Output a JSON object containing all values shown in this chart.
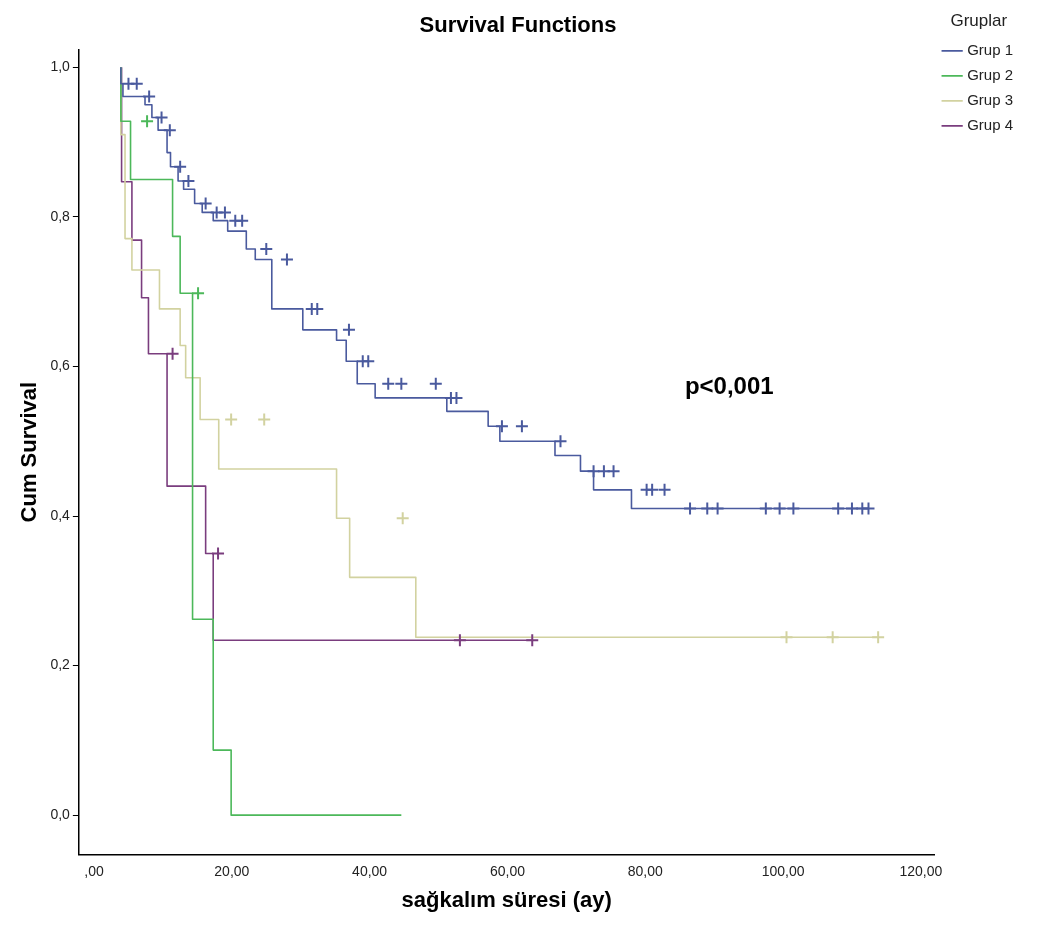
{
  "chart_data": {
    "type": "step",
    "title": "Survival Functions",
    "xlabel": "sağkalım süresi (ay)",
    "ylabel": "Cum Survival",
    "legend_title": "Gruplar",
    "legend": "top right",
    "grid": false,
    "annotations": [
      "p<0,001"
    ],
    "xlim": [
      -2.2,
      122
    ],
    "ylim": [
      -0.053,
      1.024
    ],
    "xticks": [
      {
        "value": 0,
        "label": ",00"
      },
      {
        "value": 20,
        "label": "20,00"
      },
      {
        "value": 40,
        "label": "40,00"
      },
      {
        "value": 60,
        "label": "60,00"
      },
      {
        "value": 80,
        "label": "80,00"
      },
      {
        "value": 100,
        "label": "100,00"
      },
      {
        "value": 120,
        "label": "120,00"
      }
    ],
    "yticks": [
      {
        "value": 0,
        "label": "0,0"
      },
      {
        "value": 0.2,
        "label": "0,2"
      },
      {
        "value": 0.4,
        "label": "0,4"
      },
      {
        "value": 0.6,
        "label": "0,6"
      },
      {
        "value": 0.8,
        "label": "0,8"
      },
      {
        "value": 1,
        "label": "1,0"
      }
    ],
    "series": [
      {
        "name": "Grup 1",
        "color": "#4a5a9e",
        "marker": "none",
        "x": [
          3.9,
          4.2,
          7.4,
          8.4,
          9.3,
          10.6,
          11.1,
          12.2,
          13,
          14.6,
          15.7,
          17.3,
          19.4,
          22.1,
          23.4,
          25.8,
          30.3,
          35.2,
          36.6,
          38.2,
          40.8,
          51.2,
          57.2,
          58.9,
          66.9,
          70.6,
          72.5,
          78,
          84,
          112.4
        ],
        "values": [
          1,
          0.978,
          0.961,
          0.95,
          0.933,
          0.916,
          0.886,
          0.867,
          0.848,
          0.837,
          0.818,
          0.806,
          0.795,
          0.781,
          0.757,
          0.743,
          0.677,
          0.649,
          0.635,
          0.607,
          0.577,
          0.558,
          0.54,
          0.52,
          0.5,
          0.481,
          0.46,
          0.435,
          0.41,
          0.41
        ]
      },
      {
        "name": "Grup 2",
        "color": "#4cb85a",
        "marker": "none",
        "x": [
          3.9,
          5.3,
          11.4,
          12.5,
          14.3,
          17.3,
          19.9,
          44.6
        ],
        "values": [
          1,
          0.928,
          0.85,
          0.774,
          0.698,
          0.262,
          0.087,
          0
        ]
      },
      {
        "name": "Grup 3",
        "color": "#d2d2a0",
        "marker": "none",
        "x": [
          3.9,
          4.5,
          5.5,
          9.5,
          12.5,
          13.3,
          15.4,
          18.1,
          35.2,
          37.1,
          46.7,
          66.3,
          113.8
        ],
        "values": [
          1,
          0.91,
          0.771,
          0.729,
          0.677,
          0.628,
          0.585,
          0.529,
          0.463,
          0.397,
          0.318,
          0.238,
          0.238
        ]
      },
      {
        "name": "Grup 4",
        "color": "#7a3d7e",
        "marker": "none",
        "x": [
          4,
          5.5,
          6.9,
          7.9,
          10.6,
          16.2,
          17.3,
          18.9,
          63.6
        ],
        "values": [
          1,
          0.847,
          0.769,
          0.692,
          0.617,
          0.44,
          0.35,
          0.234,
          0.234
        ]
      },
      {
        "color": "#4a5a9e",
        "type": "scatter",
        "marker": "cross",
        "x": [
          5,
          6.2,
          8,
          9.8,
          11,
          12.5,
          13.7,
          16.2,
          17.8,
          19,
          20.5,
          21.5,
          25,
          28,
          31.6,
          32.4,
          37,
          39,
          39.8,
          42.7,
          44.6,
          49.6,
          51.8,
          52.6,
          59.2,
          62.1,
          67.7,
          72.5,
          74,
          75.4,
          80.2,
          81,
          82.8,
          86.5,
          89,
          90.5,
          97.5,
          99.5,
          101.5,
          108,
          110,
          111.5,
          112.4
        ],
        "values": [
          0.978,
          0.978,
          0.961,
          0.933,
          0.916,
          0.867,
          0.848,
          0.818,
          0.806,
          0.806,
          0.795,
          0.795,
          0.757,
          0.743,
          0.677,
          0.677,
          0.649,
          0.607,
          0.607,
          0.577,
          0.577,
          0.577,
          0.558,
          0.558,
          0.52,
          0.52,
          0.5,
          0.46,
          0.46,
          0.46,
          0.435,
          0.435,
          0.435,
          0.41,
          0.41,
          0.41,
          0.41,
          0.41,
          0.41,
          0.41,
          0.41,
          0.41,
          0.41
        ]
      },
      {
        "color": "#4cb85a",
        "type": "scatter",
        "marker": "cross",
        "x": [
          7.7,
          15.1
        ],
        "values": [
          0.928,
          0.698
        ]
      },
      {
        "color": "#d2d2a0",
        "type": "scatter",
        "marker": "cross",
        "x": [
          19.9,
          24.7,
          44.8,
          100.5,
          107.2,
          113.8
        ],
        "values": [
          0.529,
          0.529,
          0.397,
          0.238,
          0.238,
          0.238
        ]
      },
      {
        "color": "#7a3d7e",
        "type": "scatter",
        "marker": "cross",
        "x": [
          11.4,
          18,
          53.1,
          63.6
        ],
        "values": [
          0.617,
          0.35,
          0.234,
          0.234
        ]
      }
    ]
  }
}
